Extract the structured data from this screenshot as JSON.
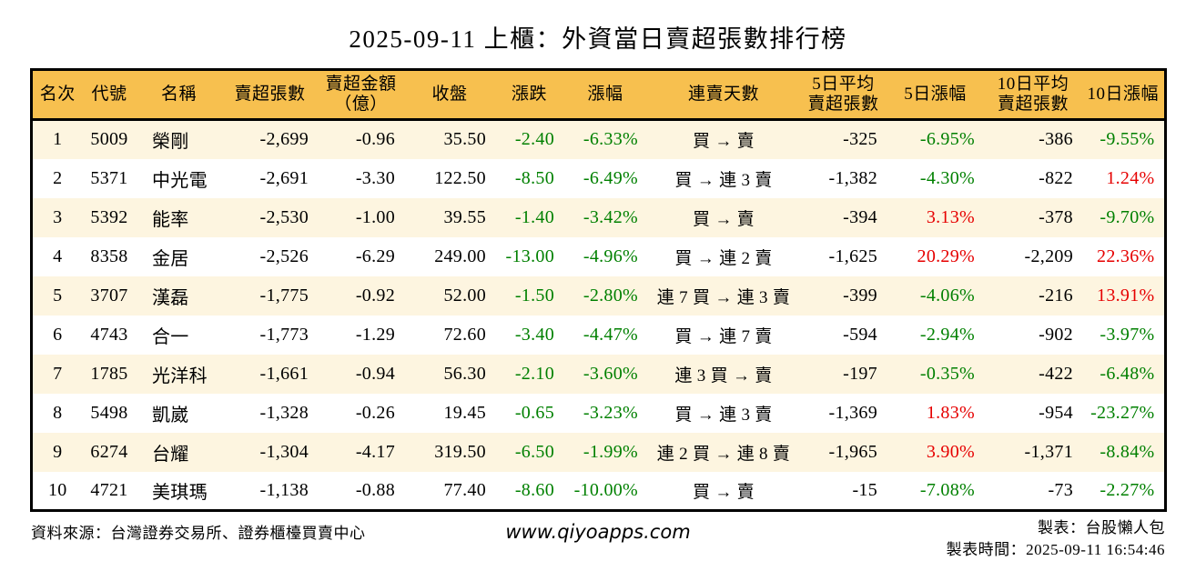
{
  "title": "2025-09-11 上櫃：外資當日賣超張數排行榜",
  "colors": {
    "header_bg": "#F7C04F",
    "row_alt_bg": "#FDF5E0",
    "row_bg": "#FFFFFF",
    "up": "#E60000",
    "down": "#008000",
    "border": "#000000",
    "text": "#000000"
  },
  "chart_data": {
    "type": "table",
    "title": "2025-09-11 上櫃：外資當日賣超張數排行榜",
    "columns": [
      "名次",
      "代號",
      "名稱",
      "賣超張數",
      "賣超金額\n（億）",
      "收盤",
      "漲跌",
      "漲幅",
      "連賣天數",
      "5日平均\n賣超張數",
      "5日漲幅",
      "10日平均\n賣超張數",
      "10日漲幅"
    ],
    "column_keys": [
      "rank",
      "code",
      "name",
      "net-sell-lots",
      "net-sell-amount",
      "close",
      "change",
      "change-pct",
      "streak",
      "avg5-net-sell",
      "pct5",
      "avg10-net-sell",
      "pct10"
    ],
    "rows": [
      {
        "cells": [
          "1",
          "5009",
          "榮剛",
          "-2,699",
          "-0.96",
          "35.50",
          "-2.40",
          "-6.33%",
          "買 → 賣",
          "-325",
          "-6.95%",
          "-386",
          "-9.55%"
        ],
        "cell_colors": {
          "6": "down",
          "7": "down",
          "10": "down",
          "12": "down"
        }
      },
      {
        "cells": [
          "2",
          "5371",
          "中光電",
          "-2,691",
          "-3.30",
          "122.50",
          "-8.50",
          "-6.49%",
          "買 → 連 3 賣",
          "-1,382",
          "-4.30%",
          "-822",
          "1.24%"
        ],
        "cell_colors": {
          "6": "down",
          "7": "down",
          "10": "down",
          "12": "up"
        }
      },
      {
        "cells": [
          "3",
          "5392",
          "能率",
          "-2,530",
          "-1.00",
          "39.55",
          "-1.40",
          "-3.42%",
          "買 → 賣",
          "-394",
          "3.13%",
          "-378",
          "-9.70%"
        ],
        "cell_colors": {
          "6": "down",
          "7": "down",
          "10": "up",
          "12": "down"
        }
      },
      {
        "cells": [
          "4",
          "8358",
          "金居",
          "-2,526",
          "-6.29",
          "249.00",
          "-13.00",
          "-4.96%",
          "買 → 連 2 賣",
          "-1,625",
          "20.29%",
          "-2,209",
          "22.36%"
        ],
        "cell_colors": {
          "6": "down",
          "7": "down",
          "10": "up",
          "12": "up"
        }
      },
      {
        "cells": [
          "5",
          "3707",
          "漢磊",
          "-1,775",
          "-0.92",
          "52.00",
          "-1.50",
          "-2.80%",
          "連 7 買 → 連 3 賣",
          "-399",
          "-4.06%",
          "-216",
          "13.91%"
        ],
        "cell_colors": {
          "6": "down",
          "7": "down",
          "10": "down",
          "12": "up"
        }
      },
      {
        "cells": [
          "6",
          "4743",
          "合一",
          "-1,773",
          "-1.29",
          "72.60",
          "-3.40",
          "-4.47%",
          "買 → 連 7 賣",
          "-594",
          "-2.94%",
          "-902",
          "-3.97%"
        ],
        "cell_colors": {
          "6": "down",
          "7": "down",
          "10": "down",
          "12": "down"
        }
      },
      {
        "cells": [
          "7",
          "1785",
          "光洋科",
          "-1,661",
          "-0.94",
          "56.30",
          "-2.10",
          "-3.60%",
          "連 3 買 → 賣",
          "-197",
          "-0.35%",
          "-422",
          "-6.48%"
        ],
        "cell_colors": {
          "6": "down",
          "7": "down",
          "10": "down",
          "12": "down"
        }
      },
      {
        "cells": [
          "8",
          "5498",
          "凱崴",
          "-1,328",
          "-0.26",
          "19.45",
          "-0.65",
          "-3.23%",
          "買 → 連 3 賣",
          "-1,369",
          "1.83%",
          "-954",
          "-23.27%"
        ],
        "cell_colors": {
          "6": "down",
          "7": "down",
          "10": "up",
          "12": "down"
        }
      },
      {
        "cells": [
          "9",
          "6274",
          "台耀",
          "-1,304",
          "-4.17",
          "319.50",
          "-6.50",
          "-1.99%",
          "連 2 買 → 連 8 賣",
          "-1,965",
          "3.90%",
          "-1,371",
          "-8.84%"
        ],
        "cell_colors": {
          "6": "down",
          "7": "down",
          "10": "up",
          "12": "down"
        }
      },
      {
        "cells": [
          "10",
          "4721",
          "美琪瑪",
          "-1,138",
          "-0.88",
          "77.40",
          "-8.60",
          "-10.00%",
          "買 → 賣",
          "-15",
          "-7.08%",
          "-73",
          "-2.27%"
        ],
        "cell_colors": {
          "6": "down",
          "7": "down",
          "10": "down",
          "12": "down"
        }
      }
    ]
  },
  "footer": {
    "source": "資料來源：台灣證券交易所、證券櫃檯買賣中心",
    "website": "www.qiyoapps.com",
    "maker": "製表：台股懶人包",
    "timestamp": "製表時間：2025-09-11 16:54:46"
  }
}
